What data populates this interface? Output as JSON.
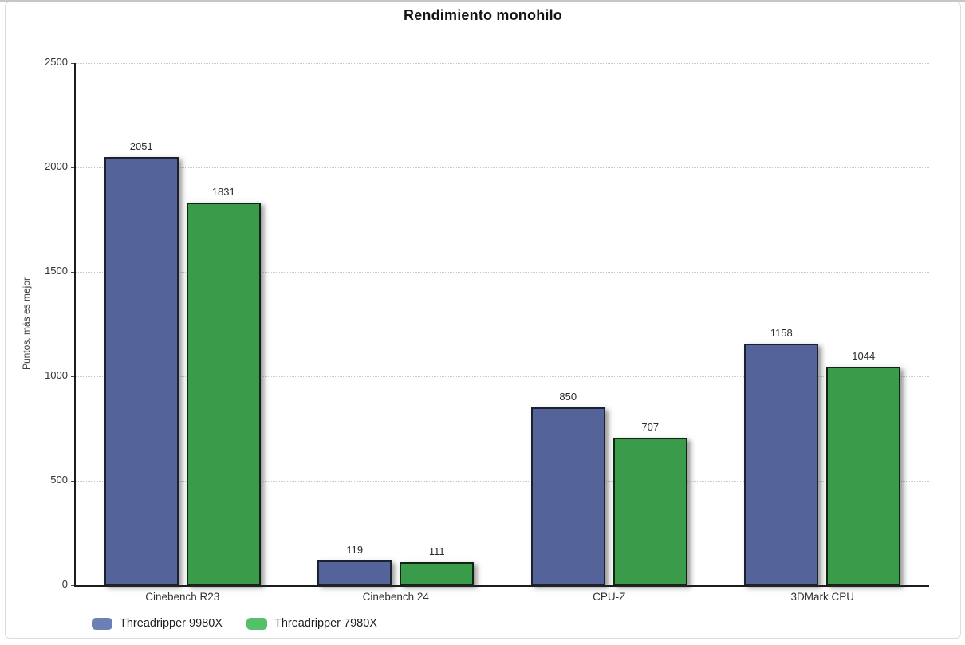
{
  "chart_data": {
    "type": "bar",
    "title": "Rendimiento monohilo",
    "ylabel": "Puntos, más es mejor",
    "xlabel": "",
    "categories": [
      "Cinebench R23",
      "Cinebench 24",
      "CPU-Z",
      "3DMark CPU"
    ],
    "series": [
      {
        "name": "Threadripper 9980X",
        "values": [
          2051,
          119,
          850,
          1158
        ],
        "color": "#55639B",
        "border_color": "#1b2130",
        "legend_color": "#6B80B5"
      },
      {
        "name": "Threadripper 7980X",
        "values": [
          1831,
          111,
          707,
          1044
        ],
        "color": "#3A9C4B",
        "border_color": "#0f2612",
        "legend_color": "#55C06A"
      }
    ],
    "ylim": [
      0,
      2500
    ],
    "yticks": [
      0,
      500,
      1000,
      1500,
      2000,
      2500
    ],
    "grid": "horizontal-dotted",
    "value_labels": true,
    "legend_position": "bottom-left"
  }
}
